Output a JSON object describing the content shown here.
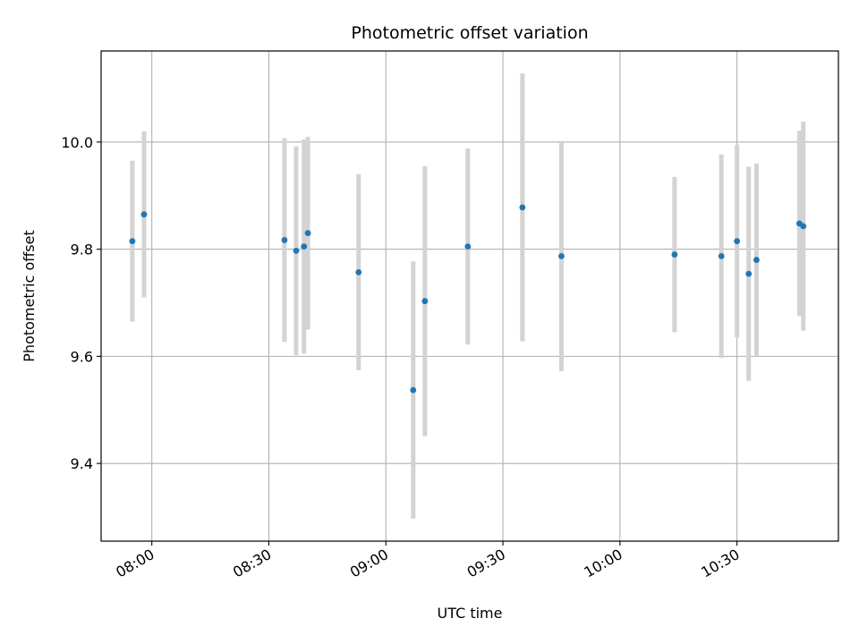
{
  "chart_data": {
    "type": "scatter",
    "title": "Photometric offset variation",
    "xlabel": "UTC time",
    "ylabel": "Photometric offset",
    "x_axis_kind": "time",
    "xlim": [
      "07:47",
      "10:56"
    ],
    "ylim": [
      9.255,
      10.17
    ],
    "grid": true,
    "colors": {
      "point": "#1f77b4",
      "errorbar": "#d3d3d3",
      "grid": "#b0b0b0"
    },
    "x_ticks": [
      "08:00",
      "08:30",
      "09:00",
      "09:30",
      "10:00",
      "10:30"
    ],
    "y_ticks": [
      "9.4",
      "9.6",
      "9.8",
      "10.0"
    ],
    "points": [
      {
        "x": "07:55",
        "y": 9.815,
        "err": 0.15
      },
      {
        "x": "07:58",
        "y": 9.865,
        "err": 0.155
      },
      {
        "x": "08:34",
        "y": 9.817,
        "err": 0.19
      },
      {
        "x": "08:37",
        "y": 9.797,
        "err": 0.195
      },
      {
        "x": "08:39",
        "y": 9.805,
        "err": 0.2
      },
      {
        "x": "08:40",
        "y": 9.83,
        "err": 0.18
      },
      {
        "x": "08:53",
        "y": 9.757,
        "err": 0.183
      },
      {
        "x": "09:07",
        "y": 9.537,
        "err": 0.24
      },
      {
        "x": "09:10",
        "y": 9.703,
        "err": 0.252
      },
      {
        "x": "09:21",
        "y": 9.805,
        "err": 0.183
      },
      {
        "x": "09:35",
        "y": 9.878,
        "err": 0.25
      },
      {
        "x": "09:45",
        "y": 9.787,
        "err": 0.215
      },
      {
        "x": "10:14",
        "y": 9.79,
        "err": 0.145
      },
      {
        "x": "10:26",
        "y": 9.787,
        "err": 0.19
      },
      {
        "x": "10:30",
        "y": 9.815,
        "err": 0.18
      },
      {
        "x": "10:33",
        "y": 9.754,
        "err": 0.2
      },
      {
        "x": "10:35",
        "y": 9.78,
        "err": 0.18
      },
      {
        "x": "10:46",
        "y": 9.848,
        "err": 0.173
      },
      {
        "x": "10:47",
        "y": 9.843,
        "err": 0.195
      }
    ]
  }
}
